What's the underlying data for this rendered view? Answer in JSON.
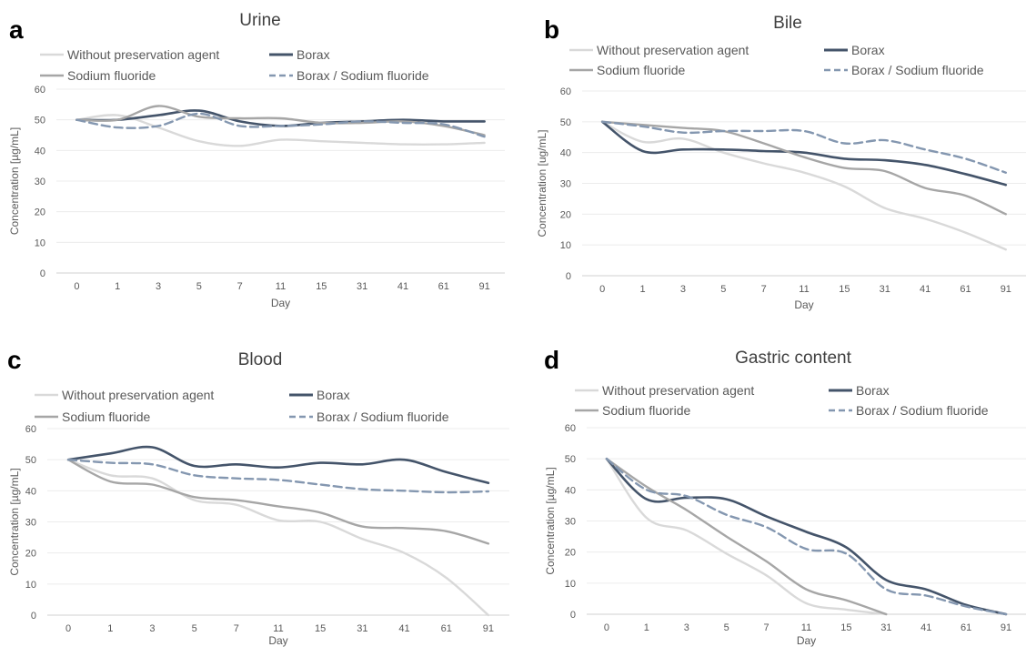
{
  "figure": {
    "colors": {
      "without": "#d9d9d9",
      "borax": "#44546a",
      "sodium": "#a6a6a6",
      "combo": "#8497b0",
      "grid": "#ececec",
      "axis": "#d0d0d0",
      "text": "#595959",
      "title": "#404040"
    }
  },
  "chart_data": [
    {
      "type": "line",
      "panel_letter": "a",
      "title": "Urine",
      "xlabel": "Day",
      "ylabel": "Concentration [µg/mL]",
      "ylim": [
        0,
        60
      ],
      "yticks": [
        "0",
        "10",
        "20",
        "30",
        "40",
        "50",
        "60"
      ],
      "grid": true,
      "legend": "top",
      "categories": [
        "0",
        "1",
        "3",
        "5",
        "7",
        "11",
        "15",
        "31",
        "41",
        "61",
        "91"
      ],
      "series": [
        {
          "name": "Without preservation agent",
          "values": [
            50,
            51.5,
            47.5,
            43,
            41.5,
            43.5,
            43,
            42.5,
            42,
            42,
            42.5
          ]
        },
        {
          "name": "Borax",
          "values": [
            50,
            50,
            51.5,
            53,
            49.5,
            48,
            49,
            49.5,
            50,
            49.5,
            49.5
          ]
        },
        {
          "name": "Sodium fluoride",
          "values": [
            50,
            50,
            54.5,
            51,
            50.5,
            50.5,
            49,
            49,
            49.5,
            48,
            45
          ]
        },
        {
          "name": "Borax / Sodium fluoride",
          "values": [
            50,
            47.5,
            48,
            52,
            48,
            48,
            48.5,
            49.5,
            49,
            48.5,
            44.5
          ]
        }
      ]
    },
    {
      "type": "line",
      "panel_letter": "b",
      "title": "Bile",
      "xlabel": "Day",
      "ylabel": "Concentration [ug/mL]",
      "ylim": [
        0,
        60
      ],
      "yticks": [
        "0",
        "10",
        "20",
        "30",
        "40",
        "50",
        "60"
      ],
      "grid": true,
      "legend": "top",
      "categories": [
        "0",
        "1",
        "3",
        "5",
        "7",
        "11",
        "15",
        "31",
        "41",
        "61",
        "91"
      ],
      "series": [
        {
          "name": "Without preservation agent",
          "values": [
            50,
            43.5,
            44.5,
            40,
            36.5,
            33.5,
            29,
            22,
            18.5,
            14,
            8.5
          ]
        },
        {
          "name": "Borax",
          "values": [
            50,
            40.5,
            41,
            41,
            40.5,
            40,
            38,
            37.5,
            36,
            33,
            29.5
          ]
        },
        {
          "name": "Sodium fluoride",
          "values": [
            50,
            49,
            48,
            47,
            43,
            38.5,
            35,
            34,
            28.5,
            26,
            20
          ]
        },
        {
          "name": "Borax / Sodium fluoride",
          "values": [
            50,
            48.5,
            46.5,
            47,
            47,
            47,
            43,
            44,
            41,
            38,
            33.5
          ]
        }
      ]
    },
    {
      "type": "line",
      "panel_letter": "c",
      "title": "Blood",
      "xlabel": "Day",
      "ylabel": "Concentration [µg/mL]",
      "ylim": [
        0,
        60
      ],
      "yticks": [
        "0",
        "10",
        "20",
        "30",
        "40",
        "50",
        "60"
      ],
      "grid": true,
      "legend": "top",
      "categories": [
        "0",
        "1",
        "3",
        "5",
        "7",
        "11",
        "15",
        "31",
        "41",
        "61",
        "91"
      ],
      "series": [
        {
          "name": "Without preservation agent",
          "values": [
            50,
            45,
            44,
            37,
            35.5,
            30.5,
            30,
            24.5,
            20,
            12,
            0
          ]
        },
        {
          "name": "Borax",
          "values": [
            50,
            52,
            54,
            48,
            48.5,
            47.5,
            49,
            48.5,
            50,
            46,
            42.5
          ]
        },
        {
          "name": "Sodium fluoride",
          "values": [
            50,
            43,
            42,
            38,
            37,
            35,
            33,
            28.5,
            28,
            27,
            23
          ]
        },
        {
          "name": "Borax / Sodium fluoride",
          "values": [
            50,
            49,
            48.5,
            45,
            44,
            43.5,
            42,
            40.5,
            40,
            39.5,
            39.8
          ]
        }
      ]
    },
    {
      "type": "line",
      "panel_letter": "d",
      "title": "Gastric content",
      "xlabel": "Day",
      "ylabel": "Concentration [µg/mL]",
      "ylim": [
        0,
        60
      ],
      "yticks": [
        "0",
        "10",
        "20",
        "30",
        "40",
        "50",
        "60"
      ],
      "grid": true,
      "legend": "top",
      "categories": [
        "0",
        "1",
        "3",
        "5",
        "7",
        "11",
        "15",
        "31",
        "41",
        "61",
        "91"
      ],
      "series": [
        {
          "name": "Without preservation agent",
          "values": [
            50,
            31,
            27,
            19.5,
            12.5,
            3.5,
            1.5,
            0,
            null,
            null,
            null
          ]
        },
        {
          "name": "Borax",
          "values": [
            50,
            37,
            37.5,
            37,
            31.5,
            26.5,
            21.5,
            11,
            8,
            3,
            0
          ]
        },
        {
          "name": "Sodium fluoride",
          "values": [
            50,
            41,
            33.5,
            25,
            17,
            8,
            4.5,
            0,
            null,
            null,
            null
          ]
        },
        {
          "name": "Borax / Sodium fluoride",
          "values": [
            50,
            40,
            38,
            32,
            28,
            21,
            19.5,
            8,
            6,
            2.5,
            0
          ]
        }
      ]
    }
  ]
}
